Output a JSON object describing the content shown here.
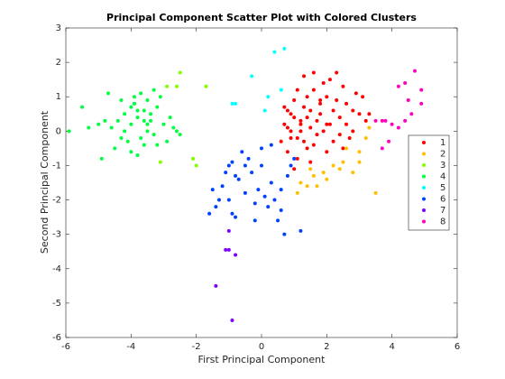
{
  "chart_data": {
    "type": "scatter",
    "title": "Principal Component Scatter Plot with Colored Clusters",
    "x_label": "First Principal Component",
    "y_label": "Second Principal Component",
    "xlim": [
      -6,
      6
    ],
    "ylim": [
      -6,
      3
    ],
    "xticks": [
      -6,
      -4,
      -2,
      0,
      2,
      4,
      6
    ],
    "yticks": [
      -6,
      -5,
      -4,
      -3,
      -2,
      -1,
      0,
      1,
      2,
      3
    ],
    "legend": "right",
    "series": [
      {
        "name": "1",
        "color": "#ff0000",
        "x": [
          1.2,
          1.5,
          1.8,
          2.1,
          0.9,
          1.3,
          1.7,
          2.4,
          2.8,
          1.0,
          0.7,
          1.4,
          2.0,
          2.6,
          3.0,
          1.1,
          1.6,
          2.2,
          0.8,
          1.9,
          2.5,
          1.3,
          0.9,
          1.5,
          2.3,
          2.9,
          1.2,
          1.8,
          0.6,
          2.1,
          1.4,
          1.0,
          2.7,
          3.2,
          1.6,
          2.0,
          0.8,
          1.1,
          1.7,
          2.4,
          2.2,
          1.3,
          0.9,
          1.9,
          2.6,
          1.5,
          3.1,
          1.2,
          2.8,
          0.7,
          1.0,
          1.4,
          2.0,
          2.3,
          1.6,
          3.3,
          2.5,
          1.8,
          1.1,
          0.8
        ],
        "y": [
          0.3,
          0.1,
          0.5,
          0.2,
          -0.2,
          0.7,
          -0.1,
          0.4,
          0.0,
          0.9,
          0.2,
          -0.5,
          1.0,
          0.8,
          0.5,
          -0.8,
          1.2,
          -0.3,
          -0.6,
          0.0,
          1.3,
          1.6,
          0.5,
          -0.9,
          0.9,
          1.1,
          0.0,
          0.8,
          -0.3,
          1.5,
          0.4,
          -1.1,
          -0.2,
          0.3,
          1.7,
          -0.6,
          0.6,
          1.2,
          0.3,
          -0.1,
          0.6,
          -0.3,
          0.0,
          1.4,
          0.2,
          0.6,
          1.0,
          0.2,
          0.6,
          0.7,
          0.4,
          1.0,
          0.2,
          1.7,
          -0.4,
          0.5,
          -0.5,
          0.9,
          -0.2,
          0.1
        ]
      },
      {
        "name": "2",
        "color": "#ffbf00",
        "x": [
          1.2,
          1.4,
          1.6,
          1.9,
          2.2,
          2.5,
          3.0,
          3.2,
          2.8,
          3.5,
          1.1,
          1.7,
          2.0,
          2.6,
          3.0,
          2.4,
          1.5,
          3.3
        ],
        "y": [
          -1.5,
          -1.6,
          -1.3,
          -1.2,
          -1.0,
          -0.9,
          -0.6,
          -0.2,
          -1.2,
          -1.8,
          -1.8,
          -1.6,
          -1.4,
          -0.5,
          -0.9,
          -1.1,
          -1.1,
          0.1
        ]
      },
      {
        "name": "3",
        "color": "#80ff00",
        "x": [
          -2.6,
          -2.9,
          -2.5,
          -1.7,
          -2.1,
          -2.0,
          -3.1
        ],
        "y": [
          1.3,
          1.3,
          1.7,
          1.3,
          -0.8,
          -1.0,
          -0.9
        ]
      },
      {
        "name": "4",
        "color": "#00ff40",
        "x": [
          -3.8,
          -4.0,
          -3.6,
          -3.4,
          -4.2,
          -3.9,
          -3.5,
          -3.7,
          -4.4,
          -3.2,
          -3.0,
          -4.6,
          -4.8,
          -3.3,
          -2.8,
          -4.1,
          -3.6,
          -3.9,
          -4.3,
          -3.5,
          -2.6,
          -5.0,
          -5.3,
          -5.5,
          -5.9,
          -3.7,
          -4.0,
          -3.3,
          -2.5,
          -4.5,
          -3.8,
          -4.2,
          -3.1,
          -3.6,
          -4.7,
          -2.9,
          -3.4,
          -4.0,
          -3.8,
          -2.7,
          -4.3,
          -3.5,
          -4.9,
          -3.2,
          -3.9
        ],
        "y": [
          0.4,
          0.2,
          0.6,
          0.3,
          0.5,
          0.8,
          0.0,
          1.1,
          0.3,
          0.7,
          0.2,
          0.1,
          0.3,
          -0.1,
          0.4,
          -0.3,
          -0.4,
          1.0,
          0.9,
          0.9,
          0.0,
          0.2,
          0.1,
          0.7,
          0.0,
          -0.2,
          -0.6,
          1.2,
          -0.1,
          -0.5,
          0.6,
          0.0,
          1.0,
          0.3,
          1.1,
          -0.3,
          0.5,
          0.7,
          -0.7,
          0.1,
          -0.2,
          0.2,
          -0.8,
          -0.4,
          0.8
        ]
      },
      {
        "name": "5",
        "color": "#00ffff",
        "x": [
          0.4,
          0.7,
          -0.3,
          -0.8,
          -0.9,
          0.6,
          0.2,
          0.1
        ],
        "y": [
          2.3,
          2.4,
          1.6,
          0.8,
          0.8,
          1.2,
          1.0,
          0.6
        ]
      },
      {
        "name": "6",
        "color": "#0040ff",
        "x": [
          -0.9,
          -0.6,
          -0.3,
          0.0,
          0.3,
          0.6,
          -1.2,
          -1.0,
          -0.5,
          0.2,
          0.8,
          -1.6,
          -1.4,
          -0.8,
          -0.2,
          0.5,
          1.2,
          -1.1,
          -0.7,
          0.1,
          0.4,
          -0.4,
          0.9,
          -1.3,
          -0.9,
          0.7,
          -0.1,
          1.0,
          -0.5,
          0.3,
          -1.5,
          0.6,
          -0.8,
          -0.2,
          0.0,
          -1.0
        ],
        "y": [
          -0.9,
          -0.6,
          -1.2,
          -1.0,
          -1.5,
          -1.7,
          -1.6,
          -2.0,
          -1.8,
          -2.2,
          -1.3,
          -2.4,
          -2.2,
          -2.5,
          -2.6,
          -2.6,
          -2.9,
          -1.2,
          -1.4,
          -1.9,
          -2.0,
          -0.8,
          -1.0,
          -2.0,
          -2.4,
          -3.0,
          -1.7,
          -0.8,
          -1.0,
          -0.4,
          -1.7,
          -2.3,
          -1.3,
          -2.1,
          -0.5,
          -1.0
        ]
      },
      {
        "name": "7",
        "color": "#8000ff",
        "x": [
          -0.9,
          -1.4,
          -0.8,
          -1.0,
          -1.1,
          -1.0
        ],
        "y": [
          -5.5,
          -4.5,
          -3.6,
          -3.45,
          -3.45,
          -2.9
        ]
      },
      {
        "name": "8",
        "color": "#ff00bf",
        "x": [
          4.7,
          4.9,
          4.4,
          4.2,
          4.5,
          4.6,
          4.4,
          3.8,
          4.0,
          3.7,
          4.2,
          3.9,
          3.7,
          4.9,
          3.5
        ],
        "y": [
          1.75,
          1.2,
          1.4,
          1.3,
          0.9,
          0.5,
          0.3,
          0.3,
          0.2,
          0.3,
          0.1,
          -0.3,
          -0.5,
          0.8,
          0.3
        ]
      }
    ]
  }
}
